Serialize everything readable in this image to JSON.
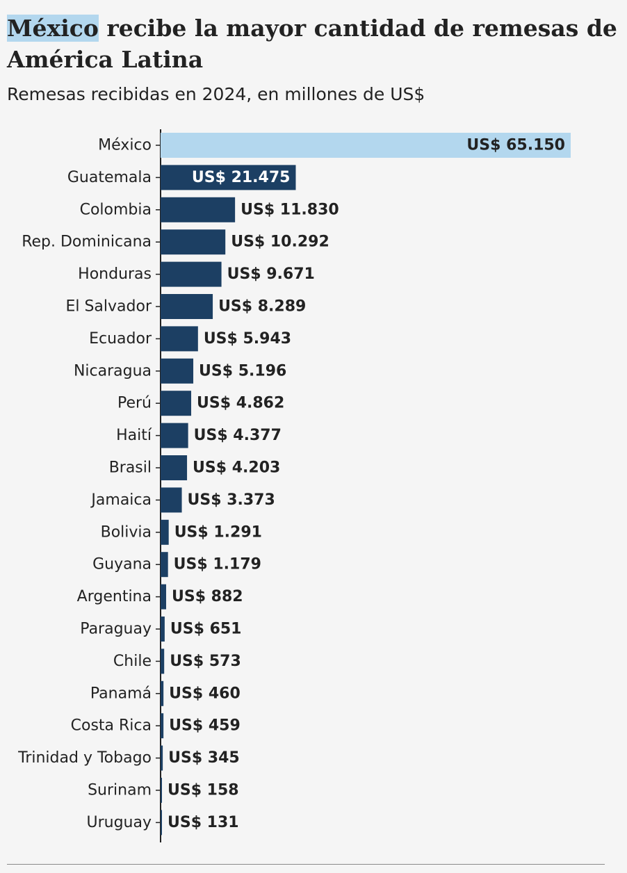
{
  "header": {
    "title_highlight": "México",
    "title_rest": " recibe la mayor cantidad de remesas de América Latina",
    "subtitle": "Remesas recibidas en 2024, en millones de US$"
  },
  "colors": {
    "background": "#f5f5f5",
    "bar": "#1c3f63",
    "highlight_bar": "#b3d7ee",
    "label_on_dark": "#ffffff",
    "label_on_light": "#222222"
  },
  "chart_data": {
    "type": "bar",
    "orientation": "horizontal",
    "title": "México recibe la mayor cantidad de remesas de América Latina",
    "subtitle": "Remesas recibidas en 2024, en millones de US$",
    "value_prefix": "US$ ",
    "categories": [
      "México",
      "Guatemala",
      "Colombia",
      "Rep. Dominicana",
      "Honduras",
      "El Salvador",
      "Ecuador",
      "Nicaragua",
      "Perú",
      "Haití",
      "Brasil",
      "Jamaica",
      "Bolivia",
      "Guyana",
      "Argentina",
      "Paraguay",
      "Chile",
      "Panamá",
      "Costa Rica",
      "Trinidad y Tobago",
      "Surinam",
      "Uruguay"
    ],
    "values": [
      65150,
      21475,
      11830,
      10292,
      9671,
      8289,
      5943,
      5196,
      4862,
      4377,
      4203,
      3373,
      1291,
      1179,
      882,
      651,
      573,
      460,
      459,
      345,
      158,
      131
    ],
    "value_labels": [
      "US$ 65.150",
      "US$ 21.475",
      "US$ 11.830",
      "US$ 10.292",
      "US$ 9.671",
      "US$ 8.289",
      "US$ 5.943",
      "US$ 5.196",
      "US$ 4.862",
      "US$ 4.377",
      "US$ 4.203",
      "US$ 3.373",
      "US$ 1.291",
      "US$ 1.179",
      "US$ 882",
      "US$ 651",
      "US$ 573",
      "US$ 460",
      "US$ 459",
      "US$ 345",
      "US$ 158",
      "US$ 131"
    ],
    "highlight": "México",
    "xlim": [
      0,
      65150
    ],
    "grid": false,
    "legend": "none"
  }
}
